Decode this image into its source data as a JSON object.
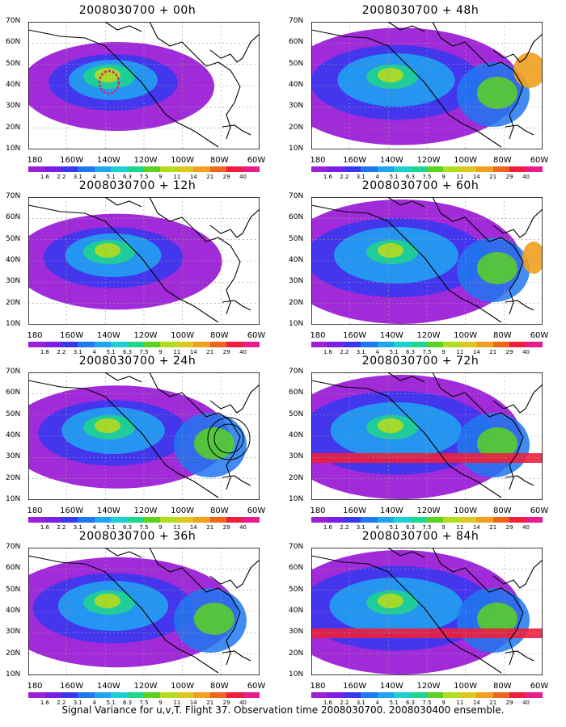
{
  "footer": "Signal Variance for u,v,T. Flight 37. Observation time 2008030700. 2008030400 ensemble.",
  "lat_labels": [
    "70N",
    "60N",
    "50N",
    "40N",
    "30N",
    "20N",
    "10N"
  ],
  "lon_labels": [
    "180",
    "160W",
    "140W",
    "120W",
    "100W",
    "80W",
    "60W"
  ],
  "colorbar": {
    "labels": [
      "1.6",
      "2.2",
      "3.1",
      "4",
      "5.1",
      "6.3",
      "7.5",
      "9",
      "11",
      "14",
      "21",
      "29",
      "40"
    ],
    "colors": [
      "#9c20d6",
      "#7a1fe6",
      "#3a37f0",
      "#1e78f0",
      "#1ea6f0",
      "#1ecfd2",
      "#1ed78c",
      "#5ad21e",
      "#b4dc1e",
      "#dcc81e",
      "#f0a01e",
      "#f0641e",
      "#f01e3c",
      "#e61e8c"
    ]
  },
  "panels": [
    {
      "title": "2008030700 + 00h",
      "col": 0,
      "row": 0
    },
    {
      "title": "2008030700 + 12h",
      "col": 0,
      "row": 1
    },
    {
      "title": "2008030700 + 24h",
      "col": 0,
      "row": 2
    },
    {
      "title": "2008030700 + 36h",
      "col": 0,
      "row": 3
    },
    {
      "title": "2008030700 + 48h",
      "col": 1,
      "row": 0
    },
    {
      "title": "2008030700 + 60h",
      "col": 1,
      "row": 1
    },
    {
      "title": "2008030700 + 72h",
      "col": 1,
      "row": 2
    },
    {
      "title": "2008030700 + 84h",
      "col": 1,
      "row": 3
    }
  ]
}
